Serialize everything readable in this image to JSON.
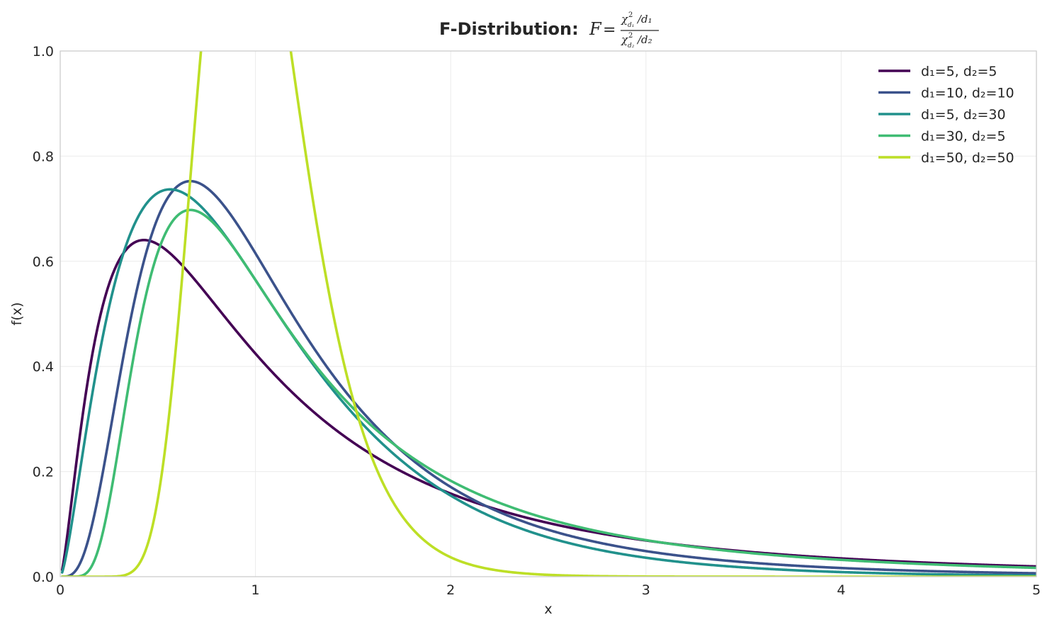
{
  "chart_data": {
    "type": "line",
    "title_prefix": "F-Distribution:",
    "title_formula": {
      "lhs": "F",
      "equals": "=",
      "num_chi": "χ",
      "num_sup": "2",
      "num_sub": "d₁",
      "num_tail": "/d₁",
      "den_chi": "χ",
      "den_sup": "2",
      "den_sub": "d₂",
      "den_tail": "/d₂"
    },
    "xlabel": "x",
    "ylabel": "f(x)",
    "xlim": [
      0,
      5
    ],
    "ylim": [
      0,
      1
    ],
    "x_ticks": [
      0,
      1,
      2,
      3,
      4,
      5
    ],
    "x_tick_labels": [
      "0",
      "1",
      "2",
      "3",
      "4",
      "5"
    ],
    "y_ticks": [
      0,
      0.2,
      0.4,
      0.6,
      0.8,
      1.0
    ],
    "y_tick_labels": [
      "0.0",
      "0.2",
      "0.4",
      "0.6",
      "0.8",
      "1.0"
    ],
    "grid": true,
    "legend_position": "top-right",
    "series": [
      {
        "name": "d₁=5, d₂=5",
        "d1": 5,
        "d2": 5,
        "color": "#440154"
      },
      {
        "name": "d₁=10, d₂=10",
        "d1": 10,
        "d2": 10,
        "color": "#3b528b"
      },
      {
        "name": "d₁=5, d₂=30",
        "d1": 5,
        "d2": 30,
        "color": "#21918c"
      },
      {
        "name": "d₁=30, d₂=5",
        "d1": 30,
        "d2": 5,
        "color": "#3fbc73"
      },
      {
        "name": "d₁=50, d₂=50",
        "d1": 50,
        "d2": 50,
        "color": "#bddf26"
      }
    ],
    "colors": {
      "grid": "#ebebeb",
      "frame": "#cccccc",
      "text": "#262626"
    }
  }
}
